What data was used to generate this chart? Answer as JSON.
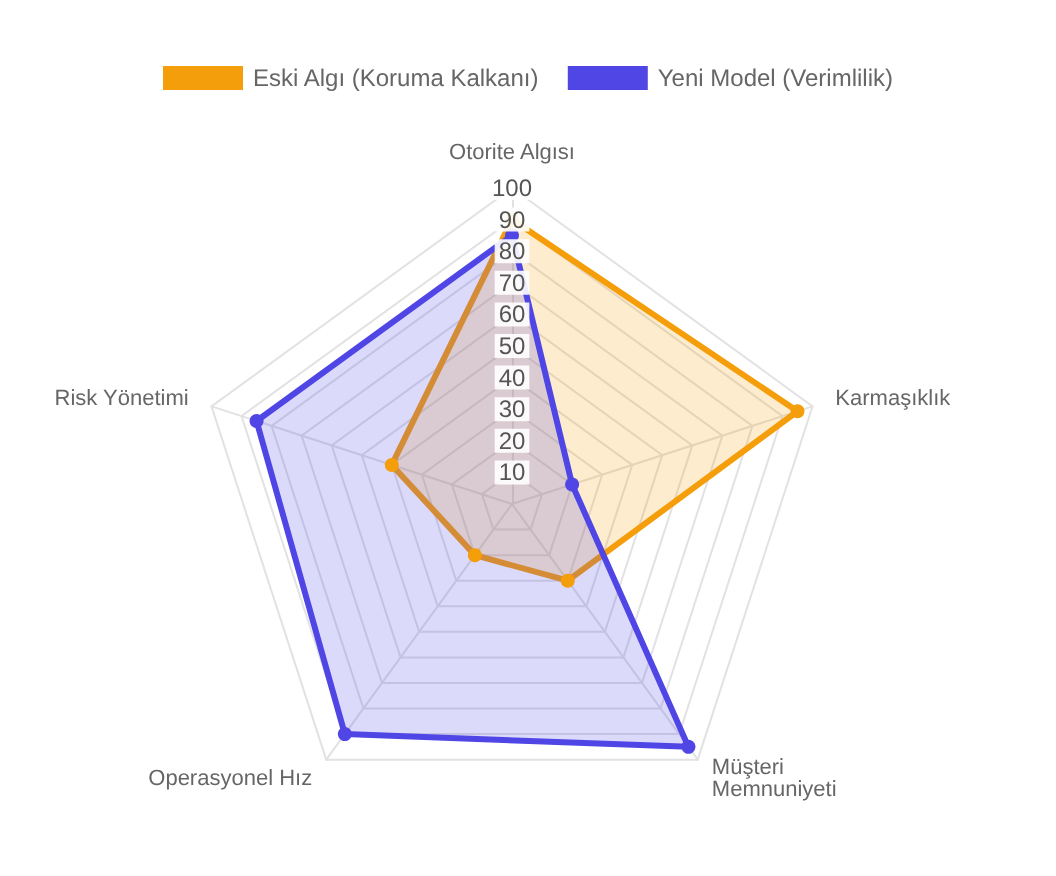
{
  "chart_data": {
    "type": "radar",
    "categories": [
      "Otorite Algısı",
      "Karmaşıklık",
      "Müşteri Memnuniyeti",
      "Operasyonel Hız",
      "Risk Yönetimi"
    ],
    "series": [
      {
        "name": "Eski Algı (Koruma Kalkanı)",
        "color": "#f59e0b",
        "values": [
          90,
          95,
          30,
          20,
          40
        ]
      },
      {
        "name": "Yeni Model (Verimlilik)",
        "color": "#4f46e5",
        "values": [
          85,
          20,
          95,
          90,
          85
        ]
      }
    ],
    "ylim": [
      0,
      100
    ],
    "yticks": [
      10,
      20,
      30,
      40,
      50,
      60,
      70,
      80,
      90,
      100
    ],
    "grid": true,
    "legend": "top",
    "marker": "circle"
  }
}
